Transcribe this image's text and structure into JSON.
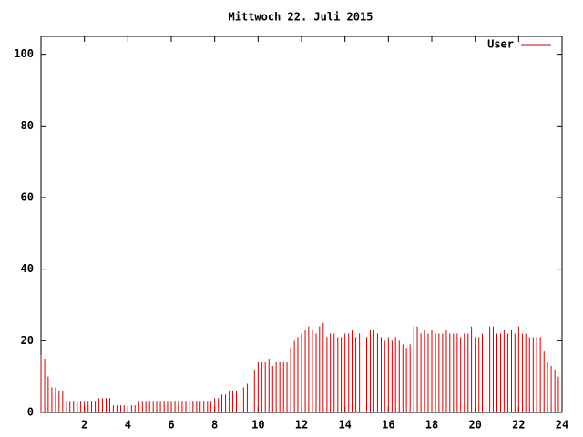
{
  "chart_data": {
    "type": "impulse",
    "title": "Mittwoch 22. Juli 2015",
    "xlim": [
      0,
      24
    ],
    "xticks": [
      2,
      4,
      6,
      8,
      10,
      12,
      14,
      16,
      18,
      20,
      22,
      24
    ],
    "ylim": [
      0,
      105
    ],
    "yticks": [
      0,
      20,
      40,
      60,
      80,
      100
    ],
    "legend": "top-right",
    "x": [
      0,
      0.17,
      0.33,
      0.5,
      0.67,
      0.83,
      1,
      1.17,
      1.33,
      1.5,
      1.67,
      1.83,
      2,
      2.17,
      2.33,
      2.5,
      2.67,
      2.83,
      3,
      3.17,
      3.33,
      3.5,
      3.67,
      3.83,
      4,
      4.17,
      4.33,
      4.5,
      4.67,
      4.83,
      5,
      5.17,
      5.33,
      5.5,
      5.67,
      5.83,
      6,
      6.17,
      6.33,
      6.5,
      6.67,
      6.83,
      7,
      7.17,
      7.33,
      7.5,
      7.67,
      7.83,
      8,
      8.17,
      8.33,
      8.5,
      8.67,
      8.83,
      9,
      9.17,
      9.33,
      9.5,
      9.67,
      9.83,
      10,
      10.17,
      10.33,
      10.5,
      10.67,
      10.83,
      11,
      11.17,
      11.33,
      11.5,
      11.67,
      11.83,
      12,
      12.17,
      12.33,
      12.5,
      12.67,
      12.83,
      13,
      13.17,
      13.33,
      13.5,
      13.67,
      13.83,
      14,
      14.17,
      14.33,
      14.5,
      14.67,
      14.83,
      15,
      15.17,
      15.33,
      15.5,
      15.67,
      15.83,
      16,
      16.17,
      16.33,
      16.5,
      16.67,
      16.83,
      17,
      17.17,
      17.33,
      17.5,
      17.67,
      17.83,
      18,
      18.17,
      18.33,
      18.5,
      18.67,
      18.83,
      19,
      19.17,
      19.33,
      19.5,
      19.67,
      19.83,
      20,
      20.17,
      20.33,
      20.5,
      20.67,
      20.83,
      21,
      21.17,
      21.33,
      21.5,
      21.67,
      21.83,
      22,
      22.17,
      22.33,
      22.5,
      22.67,
      22.83,
      23,
      23.17,
      23.33,
      23.5,
      23.67,
      23.83
    ],
    "series": [
      {
        "name": "User",
        "color": "#cc0000",
        "values": [
          16,
          15,
          10,
          7,
          7,
          6,
          6,
          3,
          3,
          3,
          3,
          3,
          3,
          3,
          3,
          3,
          4,
          4,
          4,
          4,
          2,
          2,
          2,
          2,
          2,
          2,
          2,
          3,
          3,
          3,
          3,
          3,
          3,
          3,
          3,
          3,
          3,
          3,
          3,
          3,
          3,
          3,
          3,
          3,
          3,
          3,
          3,
          3,
          4,
          4,
          5,
          5,
          6,
          6,
          6,
          6,
          7,
          8,
          9,
          12,
          14,
          14,
          14,
          15,
          13,
          14,
          14,
          14,
          14,
          18,
          20,
          21,
          22,
          23,
          24,
          23,
          22,
          24,
          25,
          21,
          22,
          22,
          21,
          21,
          22,
          22,
          23,
          21,
          22,
          22,
          21,
          23,
          23,
          22,
          21,
          20,
          21,
          20,
          21,
          20,
          19,
          18,
          19,
          24,
          24,
          22,
          23,
          22,
          23,
          22,
          22,
          22,
          23,
          22,
          22,
          22,
          21,
          22,
          22,
          24,
          21,
          21,
          22,
          21,
          24,
          24,
          22,
          22,
          23,
          22,
          23,
          22,
          24,
          22,
          22,
          21,
          21,
          21,
          21,
          17,
          14,
          13,
          12,
          10
        ]
      }
    ]
  }
}
